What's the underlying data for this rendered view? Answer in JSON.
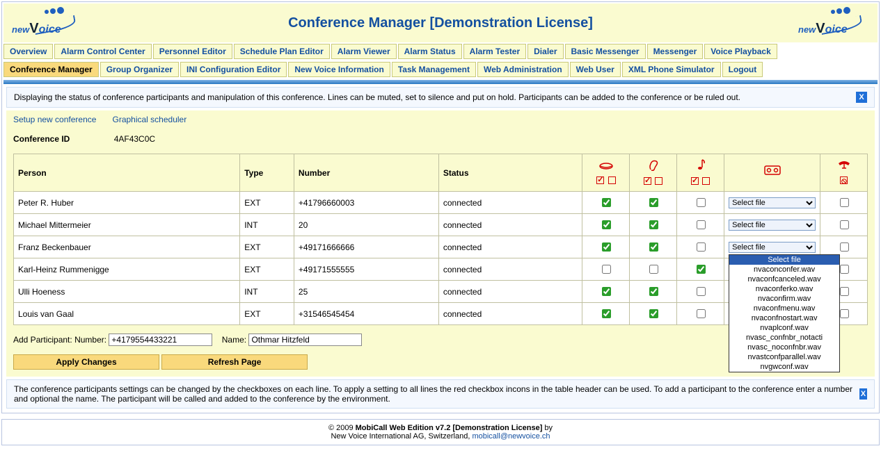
{
  "colors": {
    "accent": "#1450a0",
    "band": "#fafbd0",
    "active_tab": "#f9d97c",
    "icon_red": "#d40000",
    "check_green": "#2a9d2a"
  },
  "page_title": "Conference Manager [Demonstration License]",
  "brand": "newVoice",
  "menu_row1": [
    "Overview",
    "Alarm Control Center",
    "Personnel Editor",
    "Schedule Plan Editor",
    "Alarm Viewer",
    "Alarm Status",
    "Alarm Tester",
    "Dialer",
    "Basic Messenger",
    "Messenger",
    "Voice Playback"
  ],
  "menu_row2": [
    "Conference Manager",
    "Group Organizer",
    "INI Configuration Editor",
    "New Voice Information",
    "Task Management",
    "Web Administration",
    "Web User",
    "XML Phone Simulator",
    "Logout"
  ],
  "active_menu": "Conference Manager",
  "info_top": "Displaying the status of conference participants and manipulation of this conference. Lines can be muted, set to silence and put on hold. Participants can be added to the conference or be ruled out.",
  "links": {
    "setup": "Setup new conference",
    "graphical": "Graphical scheduler"
  },
  "conf_id_label": "Conference ID",
  "conf_id_value": "4AF43C0C",
  "headers": {
    "person": "Person",
    "type": "Type",
    "number": "Number",
    "status": "Status"
  },
  "file_placeholder": "Select file",
  "rows": [
    {
      "person": "Peter R. Huber",
      "type": "EXT",
      "number": "+41796660003",
      "status": "connected",
      "mouth": true,
      "ear": true,
      "music": false,
      "last": false
    },
    {
      "person": "Michael Mittermeier",
      "type": "INT",
      "number": "20",
      "status": "connected",
      "mouth": true,
      "ear": true,
      "music": false,
      "last": false
    },
    {
      "person": "Franz Beckenbauer",
      "type": "EXT",
      "number": "+49171666666",
      "status": "connected",
      "mouth": true,
      "ear": true,
      "music": false,
      "last": false
    },
    {
      "person": "Karl-Heinz Rummenigge",
      "type": "EXT",
      "number": "+49171555555",
      "status": "connected",
      "mouth": false,
      "ear": false,
      "music": true,
      "last": false
    },
    {
      "person": "Ulli Hoeness",
      "type": "INT",
      "number": "25",
      "status": "connected",
      "mouth": true,
      "ear": true,
      "music": false,
      "last": false
    },
    {
      "person": "Louis van Gaal",
      "type": "EXT",
      "number": "+31546545454",
      "status": "connected",
      "mouth": true,
      "ear": true,
      "music": false,
      "last": false
    }
  ],
  "dropdown_open_row": 2,
  "dropdown_options": [
    "Select file",
    "nvaconconfer.wav",
    "nvaconfcanceled.wav",
    "nvaconferko.wav",
    "nvaconfirm.wav",
    "nvaconfmenu.wav",
    "nvaconfnostart.wav",
    "nvaplconf.wav",
    "nvasc_confnbr_notacti",
    "nvasc_noconfnbr.wav",
    "nvastconfparallel.wav",
    "nvgwconf.wav"
  ],
  "add": {
    "label": "Add Participant:",
    "number_label": "Number:",
    "number_value": "+4179554433221",
    "name_label": "Name:",
    "name_value": "Othmar Hitzfeld"
  },
  "buttons": {
    "apply": "Apply Changes",
    "refresh": "Refresh Page"
  },
  "info_bottom": "The conference participants settings can be changed by the checkboxes on each line. To apply a setting to all lines the red checkbox incons in the table header can be used. To add a participant to the conference enter a number and optional the name. The participant will be called and added to the conference by the environment.",
  "footer": {
    "line1a": "© 2009 ",
    "line1b": "MobiCall Web Edition v7.2 [Demonstration License]",
    "line1c": " by",
    "line2a": "New Voice International AG, Switzerland, ",
    "email": "mobicall@newvoice.ch"
  }
}
